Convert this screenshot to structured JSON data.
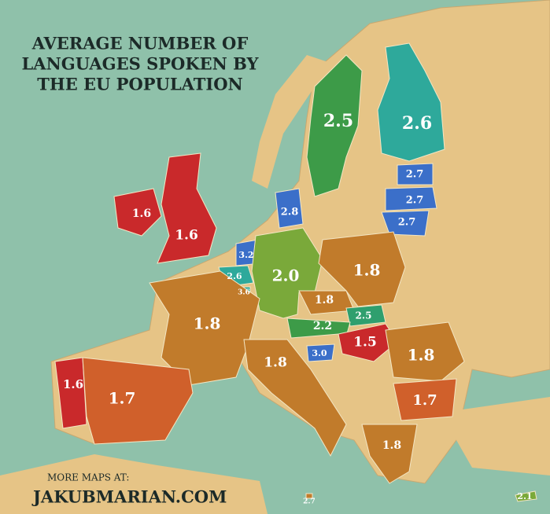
{
  "title": [
    "AVERAGE NUMBER OF",
    "LANGUAGES SPOKEN BY",
    "THE EU POPULATION"
  ],
  "footer": {
    "note": "MORE MAPS AT:",
    "site": "JAKUBMARIAN.COM"
  },
  "regions": [
    {
      "label": "2.5",
      "color": "#3d9b48"
    },
    {
      "label": "2.6",
      "color": "#2ea99b"
    },
    {
      "label": "2.7",
      "color": "#3b6fc9"
    },
    {
      "label": "2.7",
      "color": "#3b6fc9"
    },
    {
      "label": "2.7",
      "color": "#3b6fc9"
    },
    {
      "label": "1.6",
      "color": "#c9292b"
    },
    {
      "label": "1.6",
      "color": "#c9292b"
    },
    {
      "label": "2.8",
      "color": "#3b6fc9"
    },
    {
      "label": "3.2",
      "color": "#3b6fc9"
    },
    {
      "label": "2.6",
      "color": "#2ea99b"
    },
    {
      "label": "3.6",
      "color": "#2ea99b"
    },
    {
      "label": "2.0",
      "color": "#7aa93a"
    },
    {
      "label": "1.8",
      "color": "#c17b2b"
    },
    {
      "label": "1.8",
      "color": "#c17b2b"
    },
    {
      "label": "2.5",
      "color": "#2f9f6e"
    },
    {
      "label": "2.2",
      "color": "#3d9b48"
    },
    {
      "label": "1.5",
      "color": "#c9292b"
    },
    {
      "label": "3.0",
      "color": "#3b6fc9"
    },
    {
      "label": "1.8",
      "color": "#c17b2b"
    },
    {
      "label": "1.8",
      "color": "#c17b2b"
    },
    {
      "label": "1.8",
      "color": "#c17b2b"
    },
    {
      "label": "1.7",
      "color": "#d0602b"
    },
    {
      "label": "1.8",
      "color": "#c17b2b"
    },
    {
      "label": "1.6",
      "color": "#c9292b"
    },
    {
      "label": "1.7",
      "color": "#d0602b"
    },
    {
      "label": "2.7",
      "color": "#c17b2b"
    },
    {
      "label": "2.1",
      "color": "#7aa93a"
    }
  ]
}
